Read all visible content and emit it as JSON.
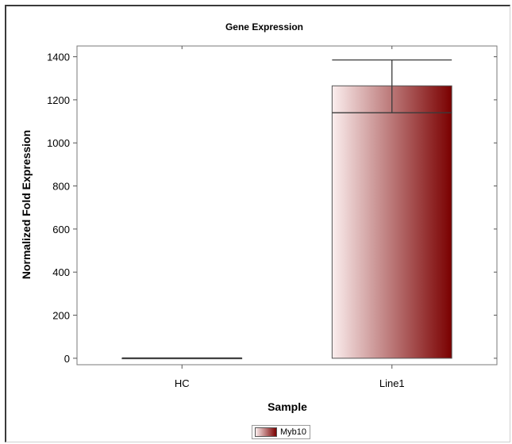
{
  "chart_data": {
    "type": "bar",
    "title": "Gene Expression",
    "xlabel": "Sample",
    "ylabel": "Normalized Fold Expression",
    "categories": [
      "HC",
      "Line1"
    ],
    "series": [
      {
        "name": "Myb10",
        "values": [
          1,
          1265
        ],
        "error_low": [
          1,
          1140
        ],
        "error_high": [
          1,
          1385
        ]
      }
    ],
    "ylim": [
      -30,
      1450
    ],
    "yticks": [
      0,
      200,
      400,
      600,
      800,
      1000,
      1200,
      1400
    ],
    "grid": false,
    "legend": "bottom-center",
    "colors": {
      "bar_light": "#fbeeee",
      "bar_dark": "#7a0000",
      "error": "#3a3a3a"
    }
  }
}
